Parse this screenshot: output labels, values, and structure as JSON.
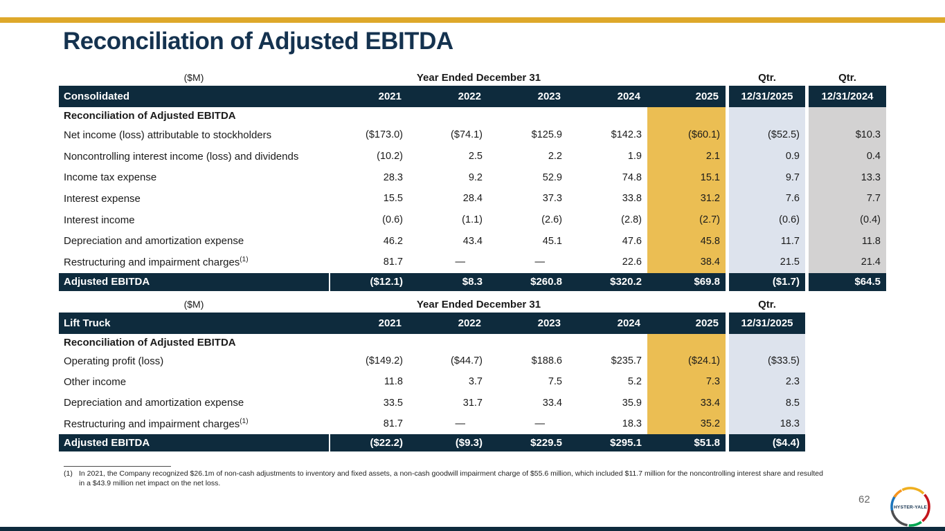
{
  "slide": {
    "title": "Reconciliation of Adjusted EBITDA",
    "page_number": "62",
    "logo_text": "HYSTER-YALE"
  },
  "colors": {
    "navy_header": "#0e2b3d",
    "top_accent_bar": "#dea82a",
    "highlight_2025": "#ebbe53",
    "highlight_qtr_2025": "#dde3ed",
    "highlight_qtr_2024": "#d3d2d2",
    "title_text": "#14324f"
  },
  "tables": [
    {
      "name": "Consolidated",
      "unit_label": "($M)",
      "period_label": "Year Ended December 31",
      "qtr_labels": [
        "Qtr.",
        "Qtr."
      ],
      "years": [
        "2021",
        "2022",
        "2023",
        "2024",
        "2025"
      ],
      "qtr_columns": [
        "12/31/2025",
        "12/31/2024"
      ],
      "section_label": "Reconciliation of Adjusted EBITDA",
      "rows": [
        {
          "label": "Net income (loss) attributable to stockholders",
          "sup": "",
          "values": [
            "($173.0)",
            "($74.1)",
            "$125.9",
            "$142.3",
            "($60.1)",
            "($52.5)",
            "$10.3"
          ]
        },
        {
          "label": "Noncontrolling interest income (loss) and dividends",
          "sup": "",
          "values": [
            "(10.2)",
            "2.5",
            "2.2",
            "1.9",
            "2.1",
            "0.9",
            "0.4"
          ]
        },
        {
          "label": "Income tax expense",
          "sup": "",
          "values": [
            "28.3",
            "9.2",
            "52.9",
            "74.8",
            "15.1",
            "9.7",
            "13.3"
          ]
        },
        {
          "label": "Interest expense",
          "sup": "",
          "values": [
            "15.5",
            "28.4",
            "37.3",
            "33.8",
            "31.2",
            "7.6",
            "7.7"
          ]
        },
        {
          "label": "Interest income",
          "sup": "",
          "values": [
            "(0.6)",
            "(1.1)",
            "(2.6)",
            "(2.8)",
            "(2.7)",
            "(0.6)",
            "(0.4)"
          ]
        },
        {
          "label": "Depreciation and amortization expense",
          "sup": "",
          "values": [
            "46.2",
            "43.4",
            "45.1",
            "47.6",
            "45.8",
            "11.7",
            "11.8"
          ]
        },
        {
          "label": "Restructuring and impairment charges",
          "sup": "(1)",
          "values": [
            "81.7",
            "—",
            "—",
            "22.6",
            "38.4",
            "21.5",
            "21.4"
          ]
        }
      ],
      "total": {
        "label": "Adjusted EBITDA",
        "values": [
          "($12.1)",
          "$8.3",
          "$260.8",
          "$320.2",
          "$69.8",
          "($1.7)",
          "$64.5"
        ]
      }
    },
    {
      "name": "Lift Truck",
      "unit_label": "($M)",
      "period_label": "Year Ended December 31",
      "qtr_labels": [
        "Qtr."
      ],
      "years": [
        "2021",
        "2022",
        "2023",
        "2024",
        "2025"
      ],
      "qtr_columns": [
        "12/31/2025"
      ],
      "section_label": "Reconciliation of Adjusted EBITDA",
      "rows": [
        {
          "label": "Operating profit (loss)",
          "sup": "",
          "values": [
            "($149.2)",
            "($44.7)",
            "$188.6",
            "$235.7",
            "($24.1)",
            "($33.5)"
          ]
        },
        {
          "label": "Other income",
          "sup": "",
          "values": [
            "11.8",
            "3.7",
            "7.5",
            "5.2",
            "7.3",
            "2.3"
          ]
        },
        {
          "label": "Depreciation and amortization expense",
          "sup": "",
          "values": [
            "33.5",
            "31.7",
            "33.4",
            "35.9",
            "33.4",
            "8.5"
          ]
        },
        {
          "label": "Restructuring and impairment charges",
          "sup": "(1)",
          "values": [
            "81.7",
            "—",
            "—",
            "18.3",
            "35.2",
            "18.3"
          ]
        }
      ],
      "total": {
        "label": "Adjusted EBITDA",
        "values": [
          "($22.2)",
          "($9.3)",
          "$229.5",
          "$295.1",
          "$51.8",
          "($4.4)"
        ]
      }
    }
  ],
  "footnote": {
    "marker": "(1)",
    "text": "In 2021, the Company recognized $26.1m of non-cash adjustments to inventory and fixed assets, a non-cash goodwill impairment charge of $55.6 million, which included $11.7 million for the noncontrolling interest share and resulted in a $43.9 million net impact on the net loss."
  }
}
